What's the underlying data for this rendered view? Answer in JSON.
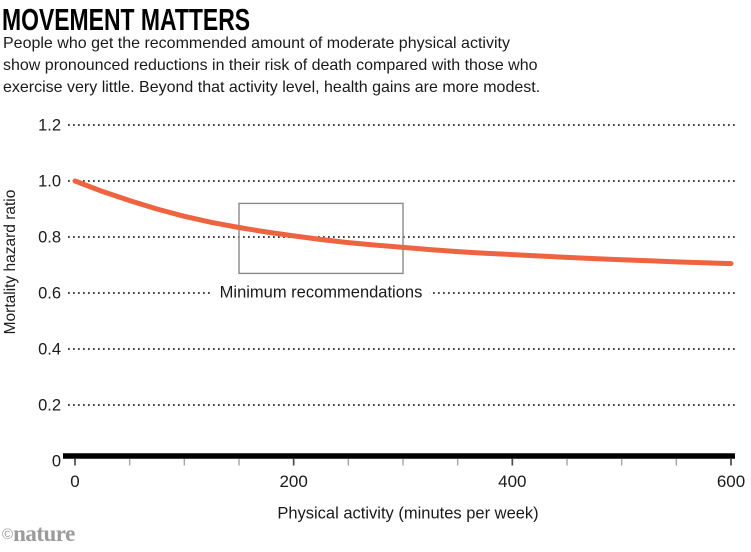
{
  "header": {
    "title": "MOVEMENT MATTERS",
    "subtitle_lines": [
      "People who get the recommended amount of moderate physical activity",
      "show pronounced reductions in their risk of death compared with those who",
      "exercise very little. Beyond that activity level, health gains are more modest."
    ]
  },
  "chart_data": {
    "type": "line",
    "title": "MOVEMENT MATTERS",
    "xlabel": "Physical activity (minutes per week)",
    "ylabel": "Mortality hazard ratio",
    "x": [
      0,
      25,
      50,
      75,
      100,
      125,
      150,
      175,
      200,
      225,
      250,
      275,
      300,
      325,
      350,
      375,
      400,
      425,
      450,
      475,
      500,
      525,
      550,
      575,
      600
    ],
    "y": [
      1.0,
      0.963,
      0.93,
      0.9,
      0.874,
      0.852,
      0.834,
      0.818,
      0.804,
      0.791,
      0.78,
      0.771,
      0.763,
      0.755,
      0.748,
      0.742,
      0.737,
      0.732,
      0.727,
      0.723,
      0.719,
      0.715,
      0.711,
      0.708,
      0.705
    ],
    "xlim": [
      0,
      600
    ],
    "ylim": [
      0,
      1.2
    ],
    "x_major_ticks": [
      0,
      200,
      400,
      600
    ],
    "x_major_tick_labels": [
      "0",
      "200",
      "400",
      "600"
    ],
    "x_minor_tick_step": 50,
    "y_ticks": [
      1.2,
      1.0,
      0.8,
      0.6,
      0.4,
      0.2,
      0
    ],
    "y_tick_labels": [
      "1.2",
      "1.0",
      "0.8",
      "0.6",
      "0.4",
      "0.2",
      "0"
    ],
    "grid": "horizontal dotted gridlines at each y tick except 0; legend none",
    "line_color": "#EE6440",
    "annotation_box": {
      "x_min": 150,
      "x_max": 300,
      "y_min": 0.67,
      "y_max": 0.92,
      "label": "Minimum recommendations",
      "label_y": 0.6,
      "border_color": "#8a8a8a"
    }
  },
  "footer": {
    "credit_symbol": "©",
    "credit_name": "nature"
  },
  "colors": {
    "curve": "#EE6440",
    "axis": "#000000",
    "gridline_dots": "#404040",
    "major_tick": "#4a4a4a",
    "minor_tick": "#a6a6a6",
    "text": "#1a1a1a",
    "credit_gray": "#9b9b9b"
  }
}
